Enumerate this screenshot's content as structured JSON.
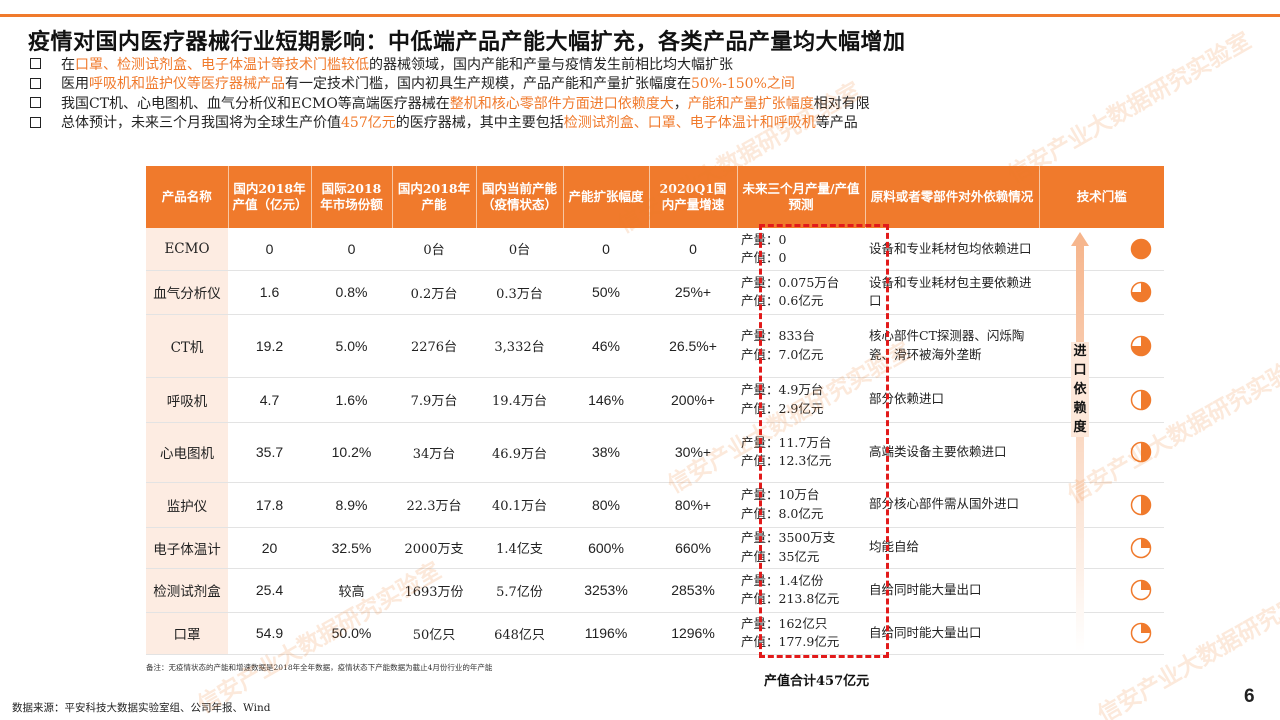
{
  "title": "疫情对国内医疗器械行业短期影响：中低端产品产能大幅扩充，各类产品产量均大幅增加",
  "bullets": [
    {
      "parts": [
        {
          "t": "在",
          "hl": false
        },
        {
          "t": "口罩、检测试剂盒、电子体温计等技术门槛较低",
          "hl": true
        },
        {
          "t": "的器械领域，国内产能和产量与疫情发生前相比均大幅扩张",
          "hl": false
        }
      ]
    },
    {
      "parts": [
        {
          "t": "医用",
          "hl": false
        },
        {
          "t": "呼吸机和监护仪等医疗器械产品",
          "hl": true
        },
        {
          "t": "有一定技术门槛，国内初具生产规模，产品产能和产量扩张幅度在",
          "hl": false
        },
        {
          "t": "50%-150%之间",
          "hl": true
        }
      ]
    },
    {
      "parts": [
        {
          "t": "我国CT机、心电图机、血气分析仪和ECMO等高端医疗器械在",
          "hl": false
        },
        {
          "t": "整机和核心零部件方面进口依赖度大",
          "hl": true
        },
        {
          "t": "，",
          "hl": false
        },
        {
          "t": "产能和产量扩张幅度",
          "hl": true
        },
        {
          "t": "相对有限",
          "hl": false
        }
      ]
    },
    {
      "parts": [
        {
          "t": "总体预计，未来三个月我国将为全球生产价值",
          "hl": false
        },
        {
          "t": "457亿元",
          "hl": true
        },
        {
          "t": "的医疗器械，其中主要包括",
          "hl": false
        },
        {
          "t": "检测试剂盒、口罩、电子体温计和呼吸机",
          "hl": true
        },
        {
          "t": "等产品",
          "hl": false
        }
      ]
    }
  ],
  "table": {
    "headers": [
      "产品名称",
      "国内2018年产值（亿元）",
      "国际2018年市场份额",
      "国内2018年产能",
      "国内当前产能（疫情状态）",
      "产能扩张幅度",
      "2020Q1国内产量增速",
      "未来三个月产量/产值预测",
      "原料或者零部件对外依赖情况",
      "技术门槛"
    ],
    "rows": [
      {
        "name": "ECMO",
        "value2018": "0",
        "share": "0",
        "cap2018": "0台",
        "capNow": "0台",
        "expand": "0",
        "growth": "0",
        "forecast": [
          "产量：0",
          "产值：0"
        ],
        "source": "设备和专业耗材包均依赖进口",
        "barrier": 1.0
      },
      {
        "name": "血气分析仪",
        "value2018": "1.6",
        "share": "0.8%",
        "cap2018": "0.2万台",
        "capNow": "0.3万台",
        "expand": "50%",
        "growth": "25%+",
        "forecast": [
          "产量：0.075万台",
          "产值：0.6亿元"
        ],
        "source": "设备和专业耗材包主要依赖进口",
        "barrier": 0.75
      },
      {
        "name": "CT机",
        "value2018": "19.2",
        "share": "5.0%",
        "cap2018": "2276台",
        "capNow": "3,332台",
        "expand": "46%",
        "growth": "26.5%+",
        "forecast": [
          "产量：833台",
          "产值：7.0亿元"
        ],
        "source": "核心部件CT探测器、闪烁陶瓷、滑环被海外垄断",
        "barrier": 0.75
      },
      {
        "name": "呼吸机",
        "value2018": "4.7",
        "share": "1.6%",
        "cap2018": "7.9万台",
        "capNow": "19.4万台",
        "expand": "146%",
        "growth": "200%+",
        "forecast": [
          "产量：4.9万台",
          "产值：2.9亿元"
        ],
        "source": "部分依赖进口",
        "barrier": 0.5
      },
      {
        "name": "心电图机",
        "value2018": "35.7",
        "share": "10.2%",
        "cap2018": "34万台",
        "capNow": "46.9万台",
        "expand": "38%",
        "growth": "30%+",
        "forecast": [
          "产量：11.7万台",
          "产值：12.3亿元"
        ],
        "source": "高端类设备主要依赖进口",
        "barrier": 0.5
      },
      {
        "name": "监护仪",
        "value2018": "17.8",
        "share": "8.9%",
        "cap2018": "22.3万台",
        "capNow": "40.1万台",
        "expand": "80%",
        "growth": "80%+",
        "forecast": [
          "产量：10万台",
          "产值：8.0亿元"
        ],
        "source": "部分核心部件需从国外进口",
        "barrier": 0.5
      },
      {
        "name": "电子体温计",
        "value2018": "20",
        "share": "32.5%",
        "cap2018": "2000万支",
        "capNow": "1.4亿支",
        "expand": "600%",
        "growth": "660%",
        "forecast": [
          "产量：3500万支",
          "产值：35亿元"
        ],
        "source": "均能自给",
        "barrier": 0.25
      },
      {
        "name": "检测试剂盒",
        "value2018": "25.4",
        "share": "较高",
        "cap2018": "1693万份",
        "capNow": "5.7亿份",
        "expand": "3253%",
        "growth": "2853%",
        "forecast": [
          "产量：1.4亿份",
          "产值：213.8亿元"
        ],
        "source": "自给同时能大量出口",
        "barrier": 0.25
      },
      {
        "name": "口罩",
        "value2018": "54.9",
        "share": "50.0%",
        "cap2018": "50亿只",
        "capNow": "648亿只",
        "expand": "1196%",
        "growth": "1296%",
        "forecast": [
          "产量：162亿只",
          "产值：177.9亿元"
        ],
        "source": "自给同时能大量出口",
        "barrier": 0.25
      }
    ]
  },
  "dependency_label": [
    "进",
    "口",
    "依",
    "赖",
    "度"
  ],
  "total": "产值合计457亿元",
  "note": "备注：无疫情状态的产能和增速数据是2018年全年数据，疫情状态下产能数据为截止4月份行业的年产能",
  "data_source": "数据来源：平安科技大数据实验室组、公司年报、Wind",
  "page_number": "6",
  "watermark": "信安产业大数据研究实验室",
  "colors": {
    "accent": "#f07a2c",
    "dash": "#e21a1a",
    "row_name_bg": "#fdece2"
  }
}
